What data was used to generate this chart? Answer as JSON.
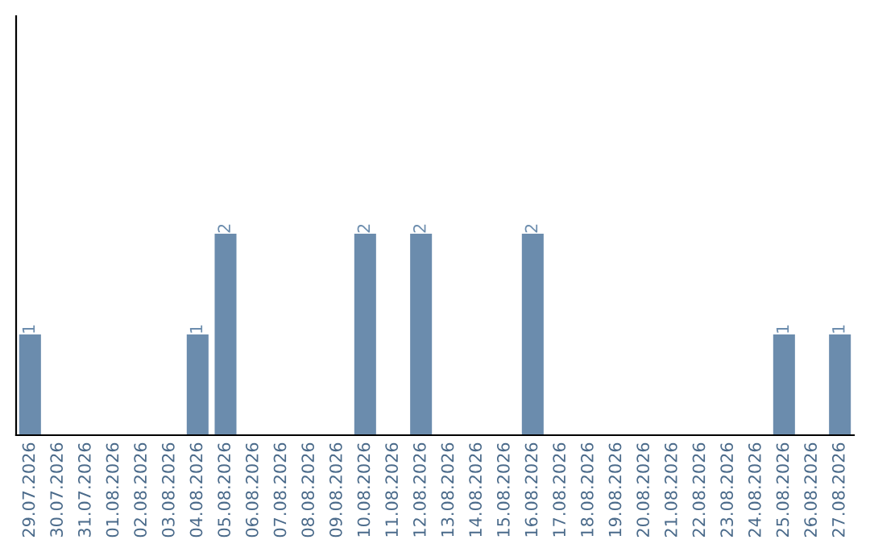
{
  "chart_data": {
    "type": "bar",
    "categories": [
      "29.07.2026",
      "30.07.2026",
      "31.07.2026",
      "01.08.2026",
      "02.08.2026",
      "03.08.2026",
      "04.08.2026",
      "05.08.2026",
      "06.08.2026",
      "07.08.2026",
      "08.08.2026",
      "09.08.2026",
      "10.08.2026",
      "11.08.2026",
      "12.08.2026",
      "13.08.2026",
      "14.08.2026",
      "15.08.2026",
      "16.08.2026",
      "17.08.2026",
      "18.08.2026",
      "19.08.2026",
      "20.08.2026",
      "21.08.2026",
      "22.08.2026",
      "23.08.2026",
      "24.08.2026",
      "25.08.2026",
      "26.08.2026",
      "27.08.2026"
    ],
    "values": [
      1,
      0,
      0,
      0,
      0,
      0,
      1,
      2,
      0,
      0,
      0,
      0,
      2,
      0,
      2,
      0,
      0,
      0,
      2,
      0,
      0,
      0,
      0,
      0,
      0,
      0,
      0,
      1,
      0,
      1
    ],
    "value_labels": [
      "1",
      null,
      null,
      null,
      null,
      null,
      "1",
      "2",
      null,
      null,
      null,
      null,
      "2",
      null,
      "2",
      null,
      null,
      null,
      "2",
      null,
      null,
      null,
      null,
      null,
      null,
      null,
      null,
      "1",
      null,
      "1"
    ],
    "color": "#6b8cad",
    "ylim": [
      0,
      4.16
    ],
    "tick_labels": "x",
    "grid": false,
    "legend": false
  }
}
